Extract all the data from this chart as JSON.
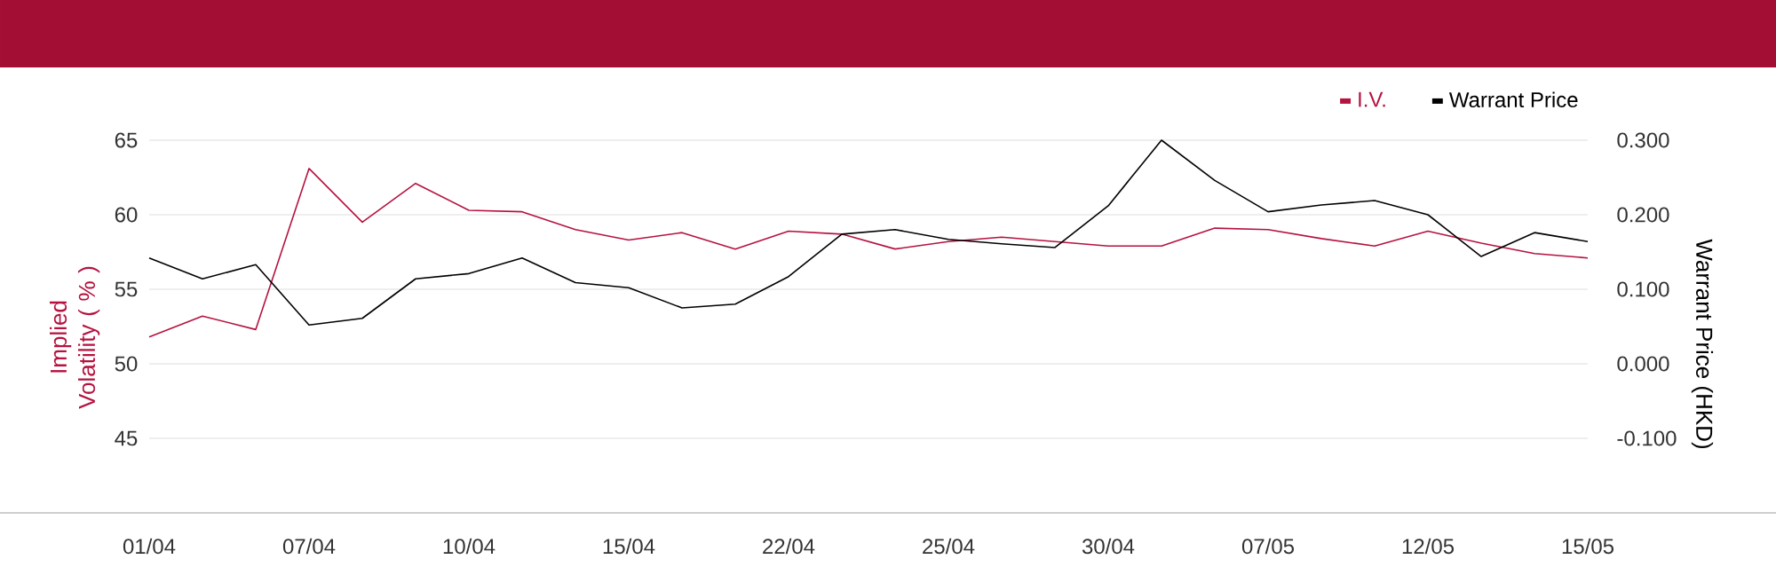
{
  "chart_data": {
    "type": "line",
    "categories": [
      "01/04",
      null,
      null,
      "07/04",
      null,
      null,
      "10/04",
      null,
      null,
      "15/04",
      null,
      null,
      "22/04",
      null,
      null,
      "25/04",
      null,
      null,
      "30/04",
      null,
      null,
      "07/05",
      null,
      null,
      "12/05",
      null,
      null,
      "15/05"
    ],
    "series": [
      {
        "name": "I.V.",
        "color": "#b5123f",
        "values": [
          51.8,
          53.2,
          52.3,
          63.1,
          59.5,
          62.1,
          60.3,
          60.2,
          59.0,
          58.3,
          58.8,
          57.7,
          58.9,
          58.7,
          57.7,
          58.2,
          58.5,
          58.2,
          57.9,
          57.9,
          59.1,
          59.0,
          58.4,
          57.9,
          58.9,
          58.1,
          57.4,
          57.1
        ]
      },
      {
        "name": "Warrant Price",
        "color": "#000000",
        "axis": "y2",
        "values": [
          0.142,
          0.114,
          0.133,
          0.052,
          0.061,
          0.114,
          0.121,
          0.142,
          0.109,
          0.102,
          0.075,
          0.08,
          0.117,
          0.174,
          0.18,
          0.167,
          0.161,
          0.156,
          0.212,
          0.3,
          0.246,
          0.204,
          0.213,
          0.219,
          0.2,
          0.144,
          0.176,
          0.164
        ]
      }
    ],
    "ylabel": "Implied Volatility ( % )",
    "y2label": "Warrant Price (HKD)",
    "ylim": [
      40,
      65
    ],
    "yticks": [
      45,
      50,
      55,
      60,
      65
    ],
    "y2lim": [
      -0.2,
      0.3
    ],
    "y2ticks": [
      {
        "value": -0.1,
        "label": "-0.100"
      },
      {
        "value": 0.0,
        "label": "0.000"
      },
      {
        "value": 0.1,
        "label": "0.100"
      },
      {
        "value": 0.2,
        "label": "0.200"
      },
      {
        "value": 0.3,
        "label": "0.300"
      }
    ],
    "grid": "y",
    "legend": "top right",
    "marker": "none",
    "line_style": "solid"
  }
}
